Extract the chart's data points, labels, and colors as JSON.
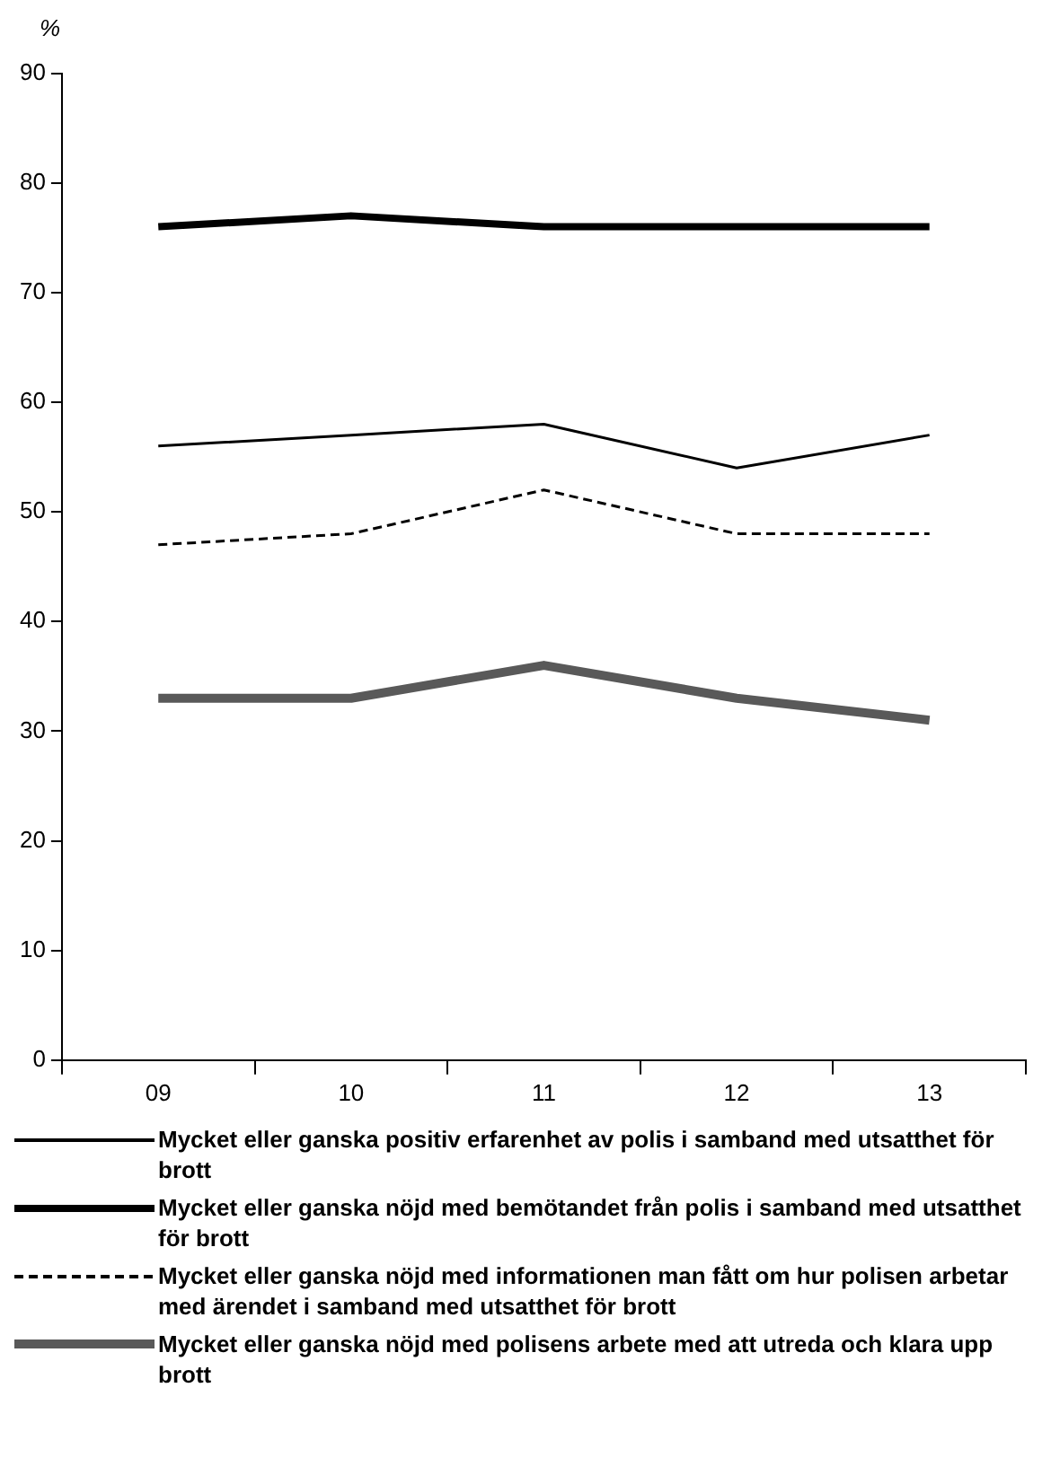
{
  "chart_data": {
    "type": "line",
    "ylabel": "%",
    "categories": [
      "09",
      "10",
      "11",
      "12",
      "13"
    ],
    "ylim": [
      0,
      90
    ],
    "yticks": [
      0,
      10,
      20,
      30,
      40,
      50,
      60,
      70,
      80,
      90
    ],
    "grid": false,
    "legend": "bottom",
    "marker": "none",
    "series": [
      {
        "name": "Mycket eller ganska positiv erfarenhet av polis i samband med utsatthet för brott",
        "color": "#000000",
        "values": [
          56,
          57,
          58,
          54,
          57
        ]
      },
      {
        "name": "Mycket eller ganska nöjd med bemötandet från polis i samband med utsatthet för brott",
        "color": "#000000",
        "values": [
          76,
          77,
          76,
          76,
          76
        ]
      },
      {
        "name": "Mycket eller ganska nöjd med informationen man fått om hur polisen arbetar med ärendet i samband med utsatthet för brott",
        "color": "#000000",
        "line_style": "dashed",
        "values": [
          47,
          48,
          52,
          48,
          48
        ]
      },
      {
        "name": "Mycket eller ganska nöjd med polisens arbete med att utreda och klara upp brott",
        "color": "#595959",
        "values": [
          33,
          33,
          36,
          33,
          31
        ]
      }
    ]
  }
}
